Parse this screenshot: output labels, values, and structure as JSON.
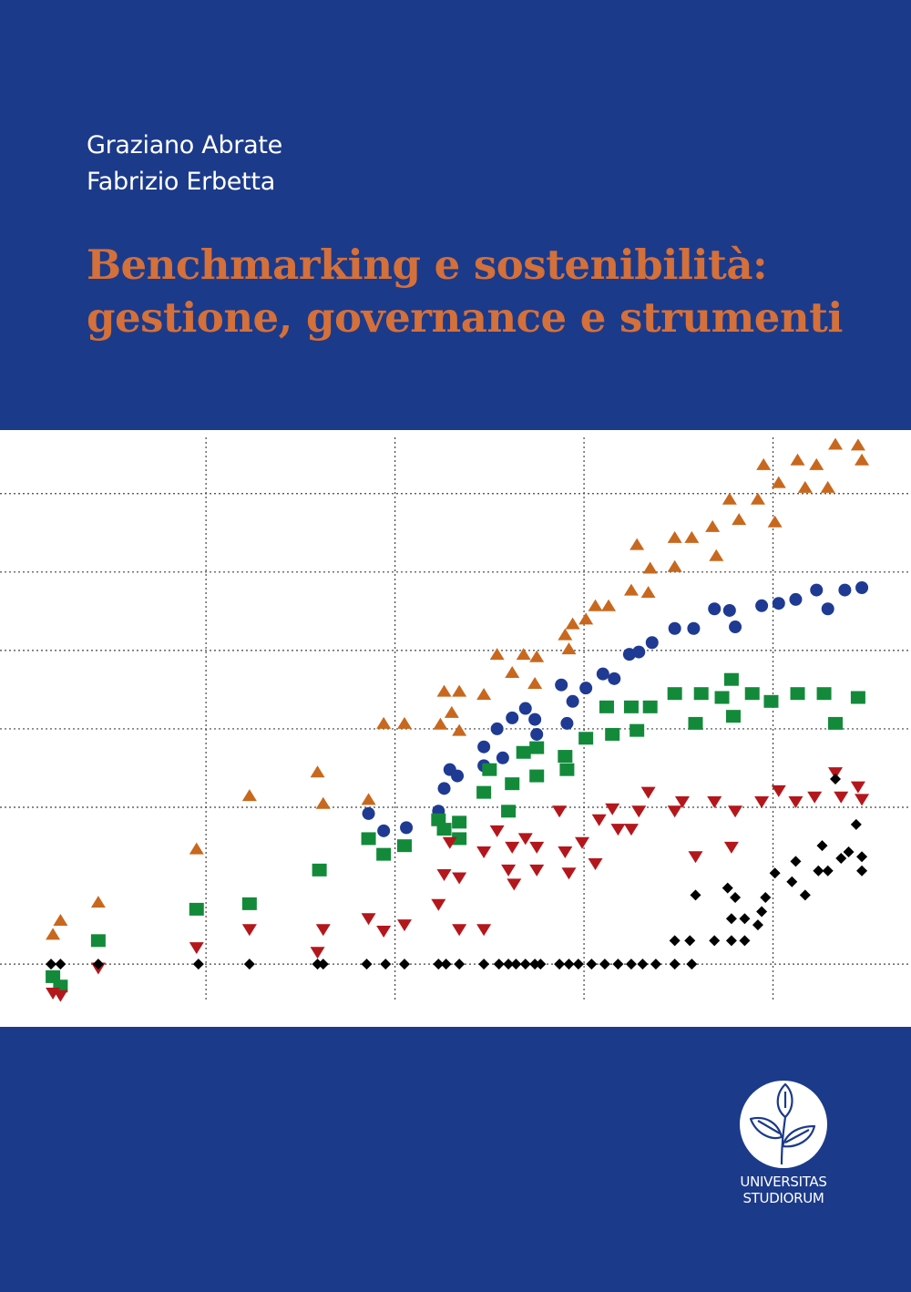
{
  "cover": {
    "authors": [
      "Graziano Abrate",
      "Fabrizio Erbetta"
    ],
    "title_lines": [
      "Benchmarking e sostenibilità:",
      "gestione, governance e strumenti"
    ],
    "publisher_lines": [
      "UNIVERSITAS",
      "STUDIORUM"
    ],
    "colors": {
      "background": "#1c3a8a",
      "title": "#d4703a",
      "authors": "#ffffff"
    }
  },
  "chart_data": {
    "type": "scatter",
    "title": "",
    "xlabel": "",
    "ylabel": "",
    "xlim": [
      -0.09,
      4.73
    ],
    "ylim": [
      -0.8,
      6.81
    ],
    "grid": true,
    "grid_x": [
      1,
      2,
      3,
      4
    ],
    "grid_y": [
      0,
      2,
      3,
      4,
      5,
      6
    ],
    "legend": "none",
    "series": [
      {
        "marker": "triangle-up",
        "color": "#c8681e",
        "points": [
          [
            0.19,
            0.38
          ],
          [
            0.23,
            0.56
          ],
          [
            0.43,
            0.79
          ],
          [
            0.95,
            1.47
          ],
          [
            1.23,
            2.15
          ],
          [
            1.59,
            2.45
          ],
          [
            1.62,
            2.05
          ],
          [
            1.86,
            2.1
          ],
          [
            1.94,
            3.07
          ],
          [
            2.05,
            3.07
          ],
          [
            2.24,
            3.06
          ],
          [
            2.26,
            3.48
          ],
          [
            2.34,
            3.48
          ],
          [
            2.3,
            3.21
          ],
          [
            2.34,
            2.98
          ],
          [
            2.47,
            3.44
          ],
          [
            2.54,
            3.95
          ],
          [
            2.62,
            3.72
          ],
          [
            2.68,
            3.95
          ],
          [
            2.75,
            3.92
          ],
          [
            2.74,
            3.58
          ],
          [
            2.9,
            4.2
          ],
          [
            2.92,
            4.02
          ],
          [
            2.94,
            4.34
          ],
          [
            3.01,
            4.4
          ],
          [
            3.06,
            4.57
          ],
          [
            3.13,
            4.57
          ],
          [
            3.25,
            4.77
          ],
          [
            3.34,
            4.74
          ],
          [
            3.28,
            5.35
          ],
          [
            3.35,
            5.05
          ],
          [
            3.48,
            5.44
          ],
          [
            3.57,
            5.44
          ],
          [
            3.48,
            5.07
          ],
          [
            3.68,
            5.58
          ],
          [
            3.7,
            5.21
          ],
          [
            3.77,
            5.93
          ],
          [
            3.82,
            5.67
          ],
          [
            3.92,
            5.93
          ],
          [
            4.01,
            5.64
          ],
          [
            3.95,
            6.37
          ],
          [
            4.03,
            6.14
          ],
          [
            4.13,
            6.43
          ],
          [
            4.17,
            6.08
          ],
          [
            4.23,
            6.37
          ],
          [
            4.29,
            6.08
          ],
          [
            4.33,
            6.63
          ],
          [
            4.45,
            6.62
          ],
          [
            4.47,
            6.43
          ]
        ]
      },
      {
        "marker": "circle",
        "color": "#1f3a93",
        "points": [
          [
            1.86,
            1.92
          ],
          [
            1.94,
            1.7
          ],
          [
            2.06,
            1.74
          ],
          [
            2.23,
            1.95
          ],
          [
            2.26,
            2.24
          ],
          [
            2.29,
            2.48
          ],
          [
            2.33,
            2.4
          ],
          [
            2.47,
            2.77
          ],
          [
            2.54,
            3.0
          ],
          [
            2.47,
            2.53
          ],
          [
            2.57,
            2.63
          ],
          [
            2.62,
            3.14
          ],
          [
            2.69,
            3.26
          ],
          [
            2.74,
            3.12
          ],
          [
            2.75,
            2.93
          ],
          [
            2.88,
            3.56
          ],
          [
            2.91,
            3.07
          ],
          [
            2.94,
            3.35
          ],
          [
            3.01,
            3.52
          ],
          [
            3.1,
            3.7
          ],
          [
            3.16,
            3.64
          ],
          [
            3.24,
            3.95
          ],
          [
            3.29,
            3.98
          ],
          [
            3.36,
            4.1
          ],
          [
            3.48,
            4.28
          ],
          [
            3.58,
            4.28
          ],
          [
            3.69,
            4.53
          ],
          [
            3.77,
            4.51
          ],
          [
            3.8,
            4.3
          ],
          [
            3.94,
            4.57
          ],
          [
            4.03,
            4.6
          ],
          [
            4.12,
            4.65
          ],
          [
            4.23,
            4.77
          ],
          [
            4.29,
            4.53
          ],
          [
            4.38,
            4.77
          ],
          [
            4.47,
            4.8
          ]
        ]
      },
      {
        "marker": "square",
        "color": "#138a3a",
        "points": [
          [
            0.19,
            -0.16
          ],
          [
            0.23,
            -0.28
          ],
          [
            0.43,
            0.3
          ],
          [
            0.95,
            0.7
          ],
          [
            1.23,
            0.77
          ],
          [
            1.6,
            1.2
          ],
          [
            1.86,
            1.6
          ],
          [
            1.94,
            1.4
          ],
          [
            2.05,
            1.51
          ],
          [
            2.23,
            1.84
          ],
          [
            2.26,
            1.72
          ],
          [
            2.34,
            1.6
          ],
          [
            2.34,
            1.81
          ],
          [
            2.47,
            2.19
          ],
          [
            2.5,
            2.48
          ],
          [
            2.62,
            2.3
          ],
          [
            2.6,
            1.95
          ],
          [
            2.68,
            2.7
          ],
          [
            2.75,
            2.4
          ],
          [
            2.75,
            2.76
          ],
          [
            2.9,
            2.65
          ],
          [
            2.91,
            2.48
          ],
          [
            3.01,
            2.88
          ],
          [
            3.12,
            3.28
          ],
          [
            3.15,
            2.93
          ],
          [
            3.25,
            3.28
          ],
          [
            3.28,
            2.98
          ],
          [
            3.35,
            3.28
          ],
          [
            3.48,
            3.45
          ],
          [
            3.59,
            3.07
          ],
          [
            3.62,
            3.45
          ],
          [
            3.73,
            3.4
          ],
          [
            3.79,
            3.16
          ],
          [
            3.78,
            3.63
          ],
          [
            3.89,
            3.45
          ],
          [
            3.99,
            3.35
          ],
          [
            4.13,
            3.45
          ],
          [
            4.27,
            3.45
          ],
          [
            4.33,
            3.07
          ],
          [
            4.45,
            3.4
          ]
        ]
      },
      {
        "marker": "triangle-down",
        "color": "#b3171c",
        "points": [
          [
            0.19,
            -0.37
          ],
          [
            0.23,
            -0.4
          ],
          [
            0.43,
            -0.05
          ],
          [
            0.95,
            0.21
          ],
          [
            1.23,
            0.44
          ],
          [
            1.59,
            0.15
          ],
          [
            1.62,
            0.44
          ],
          [
            1.86,
            0.58
          ],
          [
            1.94,
            0.42
          ],
          [
            2.05,
            0.5
          ],
          [
            2.23,
            0.76
          ],
          [
            2.26,
            1.14
          ],
          [
            2.34,
            1.1
          ],
          [
            2.29,
            1.55
          ],
          [
            2.34,
            0.44
          ],
          [
            2.47,
            0.44
          ],
          [
            2.47,
            1.43
          ],
          [
            2.54,
            1.7
          ],
          [
            2.6,
            1.2
          ],
          [
            2.62,
            1.49
          ],
          [
            2.63,
            1.02
          ],
          [
            2.69,
            1.6
          ],
          [
            2.75,
            1.49
          ],
          [
            2.75,
            1.2
          ],
          [
            2.87,
            1.95
          ],
          [
            2.9,
            1.43
          ],
          [
            2.92,
            1.16
          ],
          [
            3.06,
            1.28
          ],
          [
            2.99,
            1.55
          ],
          [
            3.08,
            1.84
          ],
          [
            3.15,
            1.98
          ],
          [
            3.18,
            1.72
          ],
          [
            3.25,
            1.72
          ],
          [
            3.29,
            1.95
          ],
          [
            3.34,
            2.19
          ],
          [
            3.48,
            1.95
          ],
          [
            3.52,
            2.07
          ],
          [
            3.59,
            1.37
          ],
          [
            3.69,
            2.07
          ],
          [
            3.78,
            1.49
          ],
          [
            3.8,
            1.95
          ],
          [
            3.94,
            2.07
          ],
          [
            4.03,
            2.21
          ],
          [
            4.12,
            2.07
          ],
          [
            4.22,
            2.13
          ],
          [
            4.33,
            2.44
          ],
          [
            4.36,
            2.13
          ],
          [
            4.45,
            2.26
          ],
          [
            4.47,
            2.1
          ]
        ]
      },
      {
        "marker": "diamond",
        "color": "#000000",
        "points": [
          [
            0.18,
            0
          ],
          [
            0.23,
            0
          ],
          [
            0.43,
            0
          ],
          [
            0.96,
            0
          ],
          [
            1.23,
            0
          ],
          [
            1.59,
            0
          ],
          [
            1.62,
            0
          ],
          [
            1.85,
            0
          ],
          [
            1.95,
            0
          ],
          [
            2.05,
            0
          ],
          [
            2.23,
            0
          ],
          [
            2.27,
            0
          ],
          [
            2.34,
            0
          ],
          [
            2.47,
            0
          ],
          [
            2.55,
            0
          ],
          [
            2.6,
            0
          ],
          [
            2.64,
            0
          ],
          [
            2.69,
            0
          ],
          [
            2.74,
            0
          ],
          [
            2.77,
            0
          ],
          [
            2.87,
            0
          ],
          [
            2.92,
            0
          ],
          [
            2.97,
            0
          ],
          [
            3.04,
            0
          ],
          [
            3.11,
            0
          ],
          [
            3.18,
            0
          ],
          [
            3.25,
            0
          ],
          [
            3.31,
            0
          ],
          [
            3.38,
            0
          ],
          [
            3.48,
            0
          ],
          [
            3.57,
            0
          ],
          [
            3.48,
            0.3
          ],
          [
            3.56,
            0.3
          ],
          [
            3.69,
            0.3
          ],
          [
            3.78,
            0.3
          ],
          [
            3.85,
            0.3
          ],
          [
            3.59,
            0.88
          ],
          [
            3.76,
            0.97
          ],
          [
            3.8,
            0.85
          ],
          [
            3.78,
            0.58
          ],
          [
            3.85,
            0.58
          ],
          [
            3.92,
            0.5
          ],
          [
            3.94,
            0.67
          ],
          [
            3.96,
            0.85
          ],
          [
            4.01,
            1.16
          ],
          [
            4.12,
            1.31
          ],
          [
            4.1,
            1.05
          ],
          [
            4.17,
            0.88
          ],
          [
            4.24,
            1.19
          ],
          [
            4.29,
            1.19
          ],
          [
            4.26,
            1.51
          ],
          [
            4.33,
            2.36
          ],
          [
            4.36,
            1.35
          ],
          [
            4.4,
            1.43
          ],
          [
            4.44,
            1.78
          ],
          [
            4.47,
            1.37
          ],
          [
            4.47,
            1.19
          ]
        ]
      }
    ]
  }
}
